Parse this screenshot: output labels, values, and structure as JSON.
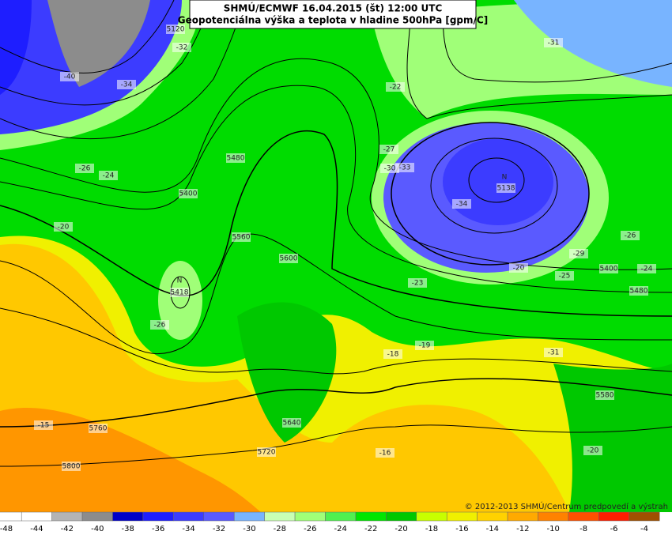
{
  "header": {
    "line1": "SHMÚ/ECMWF 16.04.2015 (št) 12:00 UTC",
    "line2": "Geopotenciálna výška a teplota v hladine 500hPa [gpm/C]"
  },
  "copyright": "© 2012-2013 SHMÚ/Centrum predpovedí a výstrah",
  "legend": {
    "labels": [
      "-48",
      "-44",
      "-42",
      "-40",
      "-38",
      "-36",
      "-34",
      "-32",
      "-30",
      "-28",
      "-26",
      "-24",
      "-22",
      "-20",
      "-18",
      "-16",
      "-14",
      "-12",
      "-10",
      "-8",
      "-6",
      "-4"
    ],
    "colors": [
      "#ffffff",
      "#ffffff",
      "#b4b4b4",
      "#8c8c8c",
      "#0000c8",
      "#1e1eff",
      "#3c3cff",
      "#5a5aff",
      "#78b4ff",
      "#c8ffb4",
      "#a0ff78",
      "#50f050",
      "#00e600",
      "#00c800",
      "#c8ff00",
      "#f0f000",
      "#ffd200",
      "#ffaa00",
      "#ff8200",
      "#ff5000",
      "#ff1e00",
      "#a05000"
    ]
  },
  "map_labels": [
    "5120",
    "-31",
    "-32",
    "-40",
    "-34",
    "-22",
    "-27",
    "-30",
    "-33",
    "-26",
    "-24",
    "-20",
    "N",
    "5418",
    "-26",
    "-34",
    "N",
    "5138",
    "-26",
    "-29",
    "-20",
    "-23",
    "-25",
    "-24",
    "5400",
    "5480",
    "-19",
    "-18",
    "-31",
    "5580",
    "-15",
    "5760",
    "5640",
    "5720",
    "-16",
    "5800",
    "-20",
    "5400",
    "5480",
    "5560",
    "5600"
  ]
}
